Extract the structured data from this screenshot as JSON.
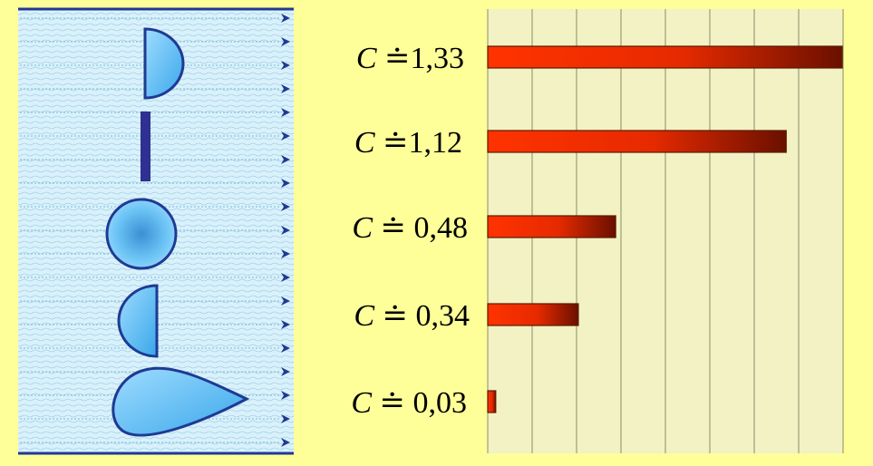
{
  "colors": {
    "background": "#ffff99",
    "water": "#d9f1fb",
    "wave_line": "#7fb8d6",
    "border_line": "#1f3a93",
    "arrow": "#1f3a93",
    "body_fill_light": "#9fdcff",
    "body_fill_dark": "#39a7ea",
    "body_stroke": "#1f3a93",
    "plate": "#2e3192",
    "plot_bg": "#f2f2c4",
    "grid": "#8c8c6a",
    "bar_start": "#ff3300",
    "bar_mid": "#e62a00",
    "bar_end": "#6a1000"
  },
  "flow": {
    "arrow_icon": "arrowhead-right",
    "arrow_count": 19
  },
  "bodies": [
    {
      "shape": "half-disc-flat-front"
    },
    {
      "shape": "flat-plate"
    },
    {
      "shape": "sphere"
    },
    {
      "shape": "half-disc-round-front"
    },
    {
      "shape": "teardrop-streamlined"
    }
  ],
  "chart_data": {
    "type": "bar",
    "orientation": "horizontal",
    "categories": [
      "C ≐ 1,33",
      "C ≐ 1,12",
      "C ≐ 0,48",
      "C ≐ 0,34",
      "C ≐ 0,03"
    ],
    "values": [
      1.33,
      1.12,
      0.48,
      0.34,
      0.03
    ],
    "xlim": [
      0,
      1.33
    ],
    "gridlines": 8,
    "grid": true
  },
  "labels": [
    {
      "var": "C",
      "sym": " ≐",
      "num": "1,33"
    },
    {
      "var": "C",
      "sym": " ≐",
      "num": "1,12"
    },
    {
      "var": "C",
      "sym": " ≐ ",
      "num": "0,48"
    },
    {
      "var": "C",
      "sym": " ≐ ",
      "num": "0,34"
    },
    {
      "var": "C",
      "sym": " ≐ ",
      "num": "0,03"
    }
  ]
}
